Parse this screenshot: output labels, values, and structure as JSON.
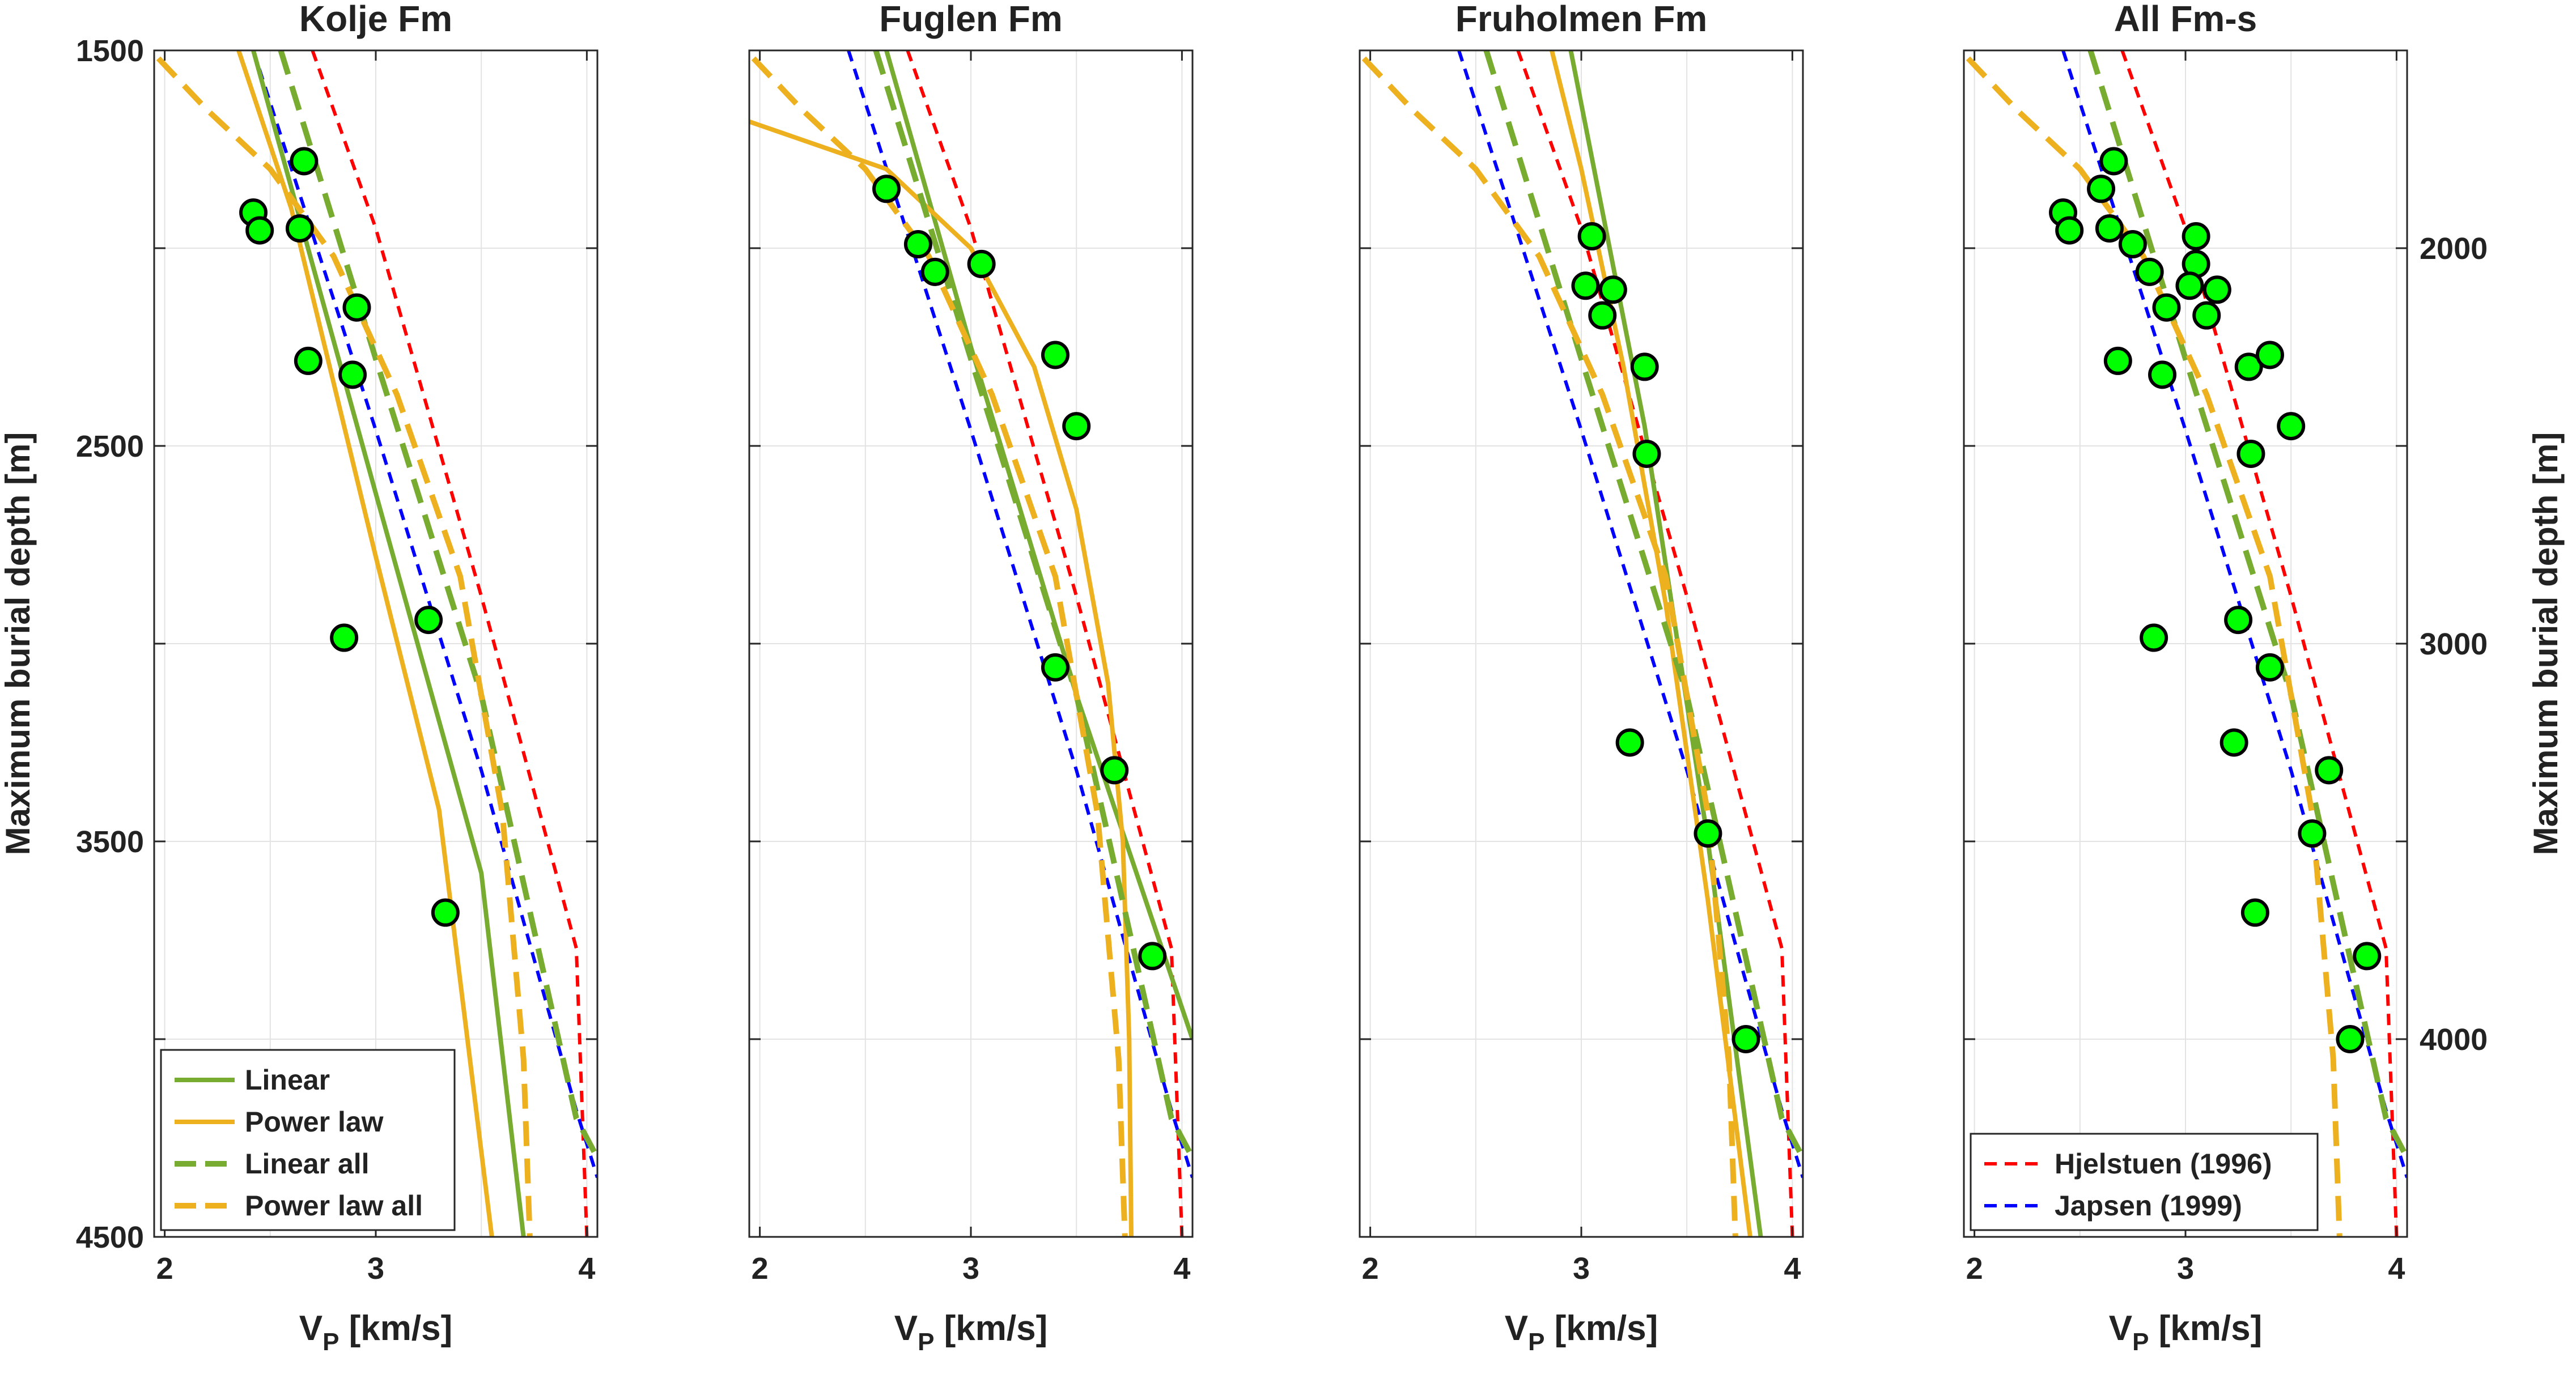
{
  "chart_data": {
    "type": "scatter",
    "colors": {
      "linear": "#77AC30",
      "power": "#EDB120",
      "hjelstuen": "#FF0000",
      "japsen": "#0000FF",
      "point_fill": "#00FF00",
      "point_edge": "#000000"
    },
    "ylim": [
      1500,
      4500
    ],
    "y_reversed": true,
    "xlim": [
      1.95,
      4.05
    ],
    "xticks": [
      2,
      3,
      4
    ],
    "yticks": [
      1500,
      2500,
      3500,
      4500
    ],
    "yticks_right": [
      2000,
      3000,
      4000
    ],
    "y_label": "Maximum burial depth [m]",
    "x_label_prefix": "V",
    "x_label_sub": "P",
    "x_label_suffix": " [km/s]",
    "panels": [
      {
        "title": "Kolje Fm",
        "left_axis": true,
        "right_axis": false,
        "points": [
          [
            2.42,
            1910
          ],
          [
            2.45,
            1955
          ],
          [
            2.64,
            1950
          ],
          [
            2.66,
            1780
          ],
          [
            2.91,
            2150
          ],
          [
            2.68,
            2285
          ],
          [
            2.89,
            2320
          ],
          [
            2.85,
            2985
          ],
          [
            3.25,
            2940
          ],
          [
            3.33,
            3680
          ]
        ],
        "curves": [
          {
            "name": "Linear",
            "style": "solid",
            "color": "linear",
            "points": [
              [
                2.42,
                1500
              ],
              [
                3.0,
                2620
              ],
              [
                3.5,
                3580
              ],
              [
                3.7,
                4500
              ]
            ]
          },
          {
            "name": "Power law",
            "style": "solid",
            "color": "power",
            "points": [
              [
                2.35,
                1500
              ],
              [
                2.6,
                1900
              ],
              [
                3.0,
                2780
              ],
              [
                3.3,
                3420
              ],
              [
                3.55,
                4500
              ]
            ]
          },
          {
            "name": "Linear all",
            "style": "dashed",
            "color": "linear",
            "points": [
              [
                2.55,
                1500
              ],
              [
                3.0,
                2280
              ],
              [
                3.5,
                3130
              ],
              [
                3.95,
                4200
              ],
              [
                4.05,
                4300
              ]
            ]
          },
          {
            "name": "Power law all",
            "style": "dashed",
            "color": "power",
            "points": [
              [
                1.97,
                1520
              ],
              [
                2.2,
                1650
              ],
              [
                2.5,
                1800
              ],
              [
                2.8,
                2020
              ],
              [
                3.1,
                2370
              ],
              [
                3.4,
                2830
              ],
              [
                3.6,
                3430
              ],
              [
                3.7,
                4050
              ],
              [
                3.73,
                4500
              ]
            ]
          }
        ]
      },
      {
        "title": "Fuglen Fm",
        "left_axis": false,
        "right_axis": false,
        "points": [
          [
            2.6,
            1850
          ],
          [
            2.75,
            1990
          ],
          [
            2.83,
            2060
          ],
          [
            3.05,
            2040
          ],
          [
            3.4,
            2270
          ],
          [
            3.5,
            2450
          ],
          [
            3.4,
            3060
          ],
          [
            3.68,
            3320
          ],
          [
            3.86,
            3790
          ]
        ],
        "curves": [
          {
            "name": "Linear",
            "style": "solid",
            "color": "linear",
            "points": [
              [
                2.6,
                1500
              ],
              [
                3.0,
                2250
              ],
              [
                3.5,
                3130
              ],
              [
                4.05,
                4000
              ]
            ]
          },
          {
            "name": "Power law",
            "style": "solid",
            "color": "power",
            "points": [
              [
                1.95,
                1680
              ],
              [
                2.6,
                1800
              ],
              [
                3.0,
                2000
              ],
              [
                3.3,
                2300
              ],
              [
                3.5,
                2660
              ],
              [
                3.65,
                3100
              ],
              [
                3.72,
                3500
              ],
              [
                3.75,
                4000
              ],
              [
                3.76,
                4500
              ]
            ]
          },
          {
            "name": "Linear all",
            "style": "dashed",
            "color": "linear",
            "points": [
              [
                2.55,
                1500
              ],
              [
                3.0,
                2280
              ],
              [
                3.5,
                3130
              ],
              [
                3.95,
                4200
              ],
              [
                4.05,
                4300
              ]
            ]
          },
          {
            "name": "Power law all",
            "style": "dashed",
            "color": "power",
            "points": [
              [
                1.97,
                1520
              ],
              [
                2.2,
                1650
              ],
              [
                2.5,
                1800
              ],
              [
                2.8,
                2020
              ],
              [
                3.1,
                2370
              ],
              [
                3.4,
                2830
              ],
              [
                3.6,
                3430
              ],
              [
                3.7,
                4050
              ],
              [
                3.73,
                4500
              ]
            ]
          }
        ]
      },
      {
        "title": "Fruholmen Fm",
        "left_axis": false,
        "right_axis": false,
        "points": [
          [
            3.05,
            1970
          ],
          [
            3.02,
            2095
          ],
          [
            3.15,
            2105
          ],
          [
            3.1,
            2170
          ],
          [
            3.3,
            2300
          ],
          [
            3.31,
            2520
          ],
          [
            3.23,
            3250
          ],
          [
            3.6,
            3480
          ],
          [
            3.78,
            4000
          ]
        ],
        "curves": [
          {
            "name": "Linear",
            "style": "solid",
            "color": "linear",
            "points": [
              [
                2.95,
                1500
              ],
              [
                3.3,
                2450
              ],
              [
                3.6,
                3500
              ],
              [
                3.85,
                4500
              ]
            ]
          },
          {
            "name": "Power law",
            "style": "solid",
            "color": "power",
            "points": [
              [
                2.86,
                1500
              ],
              [
                3.0,
                1800
              ],
              [
                3.2,
                2300
              ],
              [
                3.4,
                2900
              ],
              [
                3.6,
                3650
              ],
              [
                3.8,
                4500
              ]
            ]
          },
          {
            "name": "Linear all",
            "style": "dashed",
            "color": "linear",
            "points": [
              [
                2.55,
                1500
              ],
              [
                3.0,
                2280
              ],
              [
                3.5,
                3130
              ],
              [
                3.95,
                4200
              ],
              [
                4.05,
                4300
              ]
            ]
          },
          {
            "name": "Power law all",
            "style": "dashed",
            "color": "power",
            "points": [
              [
                1.97,
                1520
              ],
              [
                2.2,
                1650
              ],
              [
                2.5,
                1800
              ],
              [
                2.8,
                2020
              ],
              [
                3.1,
                2370
              ],
              [
                3.4,
                2830
              ],
              [
                3.6,
                3430
              ],
              [
                3.7,
                4050
              ],
              [
                3.73,
                4500
              ]
            ]
          }
        ]
      },
      {
        "title": "All Fm-s",
        "left_axis": false,
        "right_axis": true,
        "points": [
          [
            2.42,
            1910
          ],
          [
            2.45,
            1955
          ],
          [
            2.6,
            1850
          ],
          [
            2.64,
            1950
          ],
          [
            2.66,
            1780
          ],
          [
            2.75,
            1990
          ],
          [
            2.83,
            2060
          ],
          [
            3.05,
            1970
          ],
          [
            3.05,
            2040
          ],
          [
            3.02,
            2095
          ],
          [
            3.15,
            2105
          ],
          [
            2.91,
            2150
          ],
          [
            3.1,
            2170
          ],
          [
            2.68,
            2285
          ],
          [
            2.89,
            2320
          ],
          [
            3.3,
            2300
          ],
          [
            3.4,
            2270
          ],
          [
            3.5,
            2450
          ],
          [
            3.31,
            2520
          ],
          [
            2.85,
            2985
          ],
          [
            3.25,
            2940
          ],
          [
            3.4,
            3060
          ],
          [
            3.23,
            3250
          ],
          [
            3.68,
            3320
          ],
          [
            3.6,
            3480
          ],
          [
            3.33,
            3680
          ],
          [
            3.86,
            3790
          ],
          [
            3.78,
            4000
          ]
        ],
        "curves": [
          {
            "name": "Linear all",
            "style": "dashed",
            "color": "linear",
            "points": [
              [
                2.55,
                1500
              ],
              [
                3.0,
                2280
              ],
              [
                3.5,
                3130
              ],
              [
                3.95,
                4200
              ],
              [
                4.05,
                4300
              ]
            ]
          },
          {
            "name": "Power law all",
            "style": "dashed",
            "color": "power",
            "points": [
              [
                1.97,
                1520
              ],
              [
                2.2,
                1650
              ],
              [
                2.5,
                1800
              ],
              [
                2.8,
                2020
              ],
              [
                3.1,
                2370
              ],
              [
                3.4,
                2830
              ],
              [
                3.6,
                3430
              ],
              [
                3.7,
                4050
              ],
              [
                3.73,
                4500
              ]
            ]
          }
        ]
      }
    ],
    "reference_curves": [
      {
        "name": "Hjelstuen (1996)",
        "style": "dotted",
        "color": "hjelstuen",
        "points": [
          [
            2.7,
            1500
          ],
          [
            3.0,
            1950
          ],
          [
            3.5,
            2880
          ],
          [
            3.95,
            3770
          ],
          [
            4.0,
            4500
          ]
        ]
      },
      {
        "name": "Japsen    (1999)",
        "style": "dotted",
        "color": "japsen",
        "points": [
          [
            2.42,
            1500
          ],
          [
            3.0,
            2460
          ],
          [
            3.5,
            3320
          ],
          [
            3.95,
            4180
          ],
          [
            4.05,
            4350
          ]
        ]
      }
    ],
    "legends": {
      "fits_legend_panel": 0,
      "fits_legend_location": "bottom-left",
      "fits_legend": [
        "Linear",
        "Power law",
        "Linear all",
        "Power law all"
      ],
      "reference_legend_panel": 3,
      "reference_legend_location": "bottom-left",
      "reference_legend": [
        "Hjelstuen (1996)",
        "Japsen    (1999)"
      ]
    }
  }
}
